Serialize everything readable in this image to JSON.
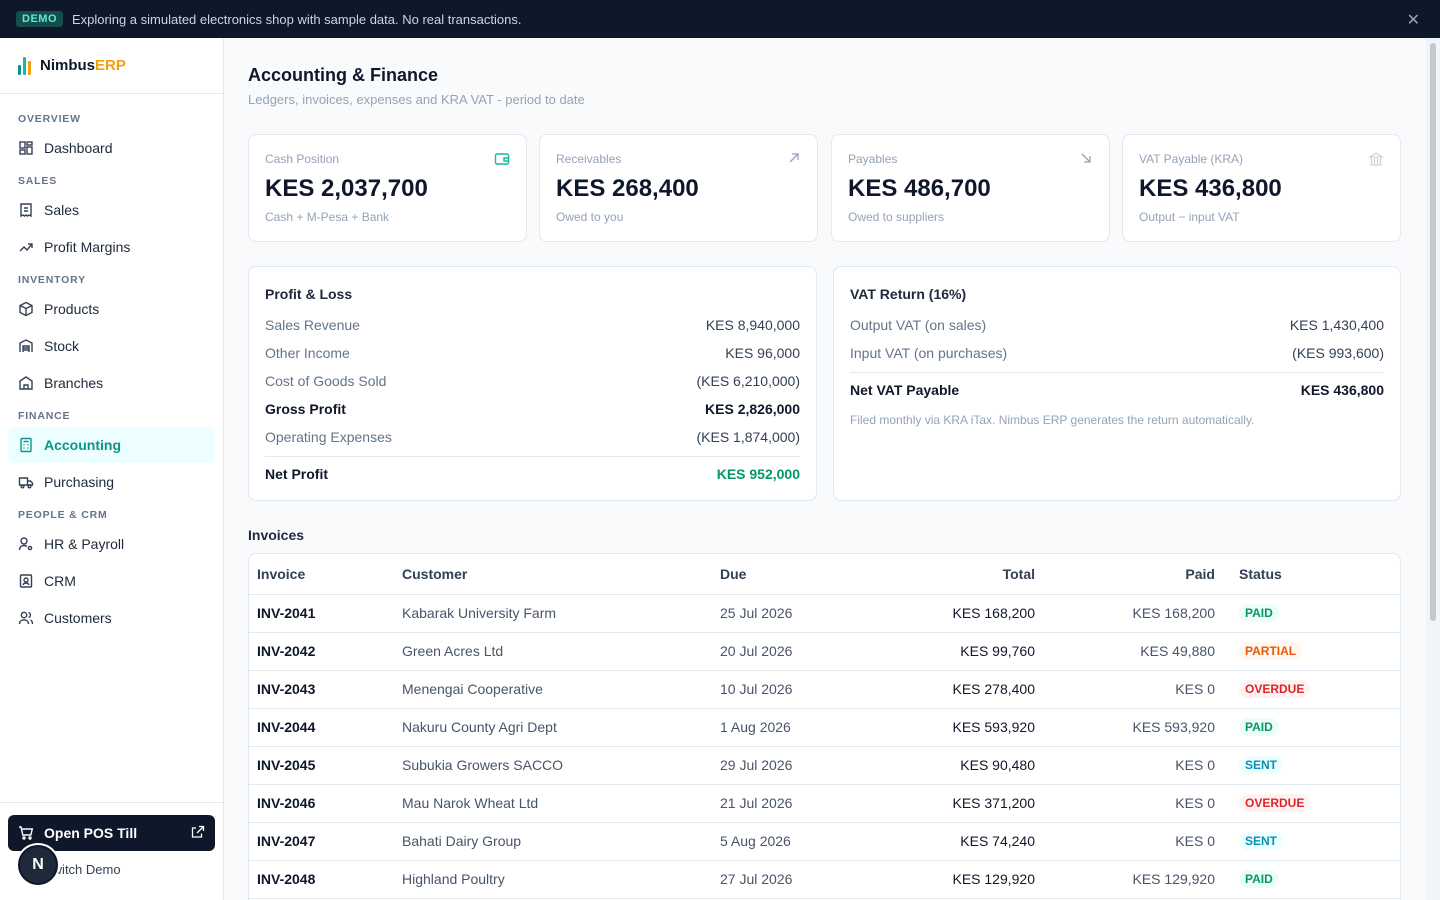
{
  "banner": {
    "badge": "DEMO",
    "text": "Exploring a simulated electronics shop with sample data. No real transactions."
  },
  "brand": {
    "name": "Nimbus",
    "accent": "ERP"
  },
  "sidebar": {
    "sections": [
      {
        "label": "OVERVIEW",
        "items": [
          {
            "label": "Dashboard",
            "icon": "dashboard-icon"
          }
        ]
      },
      {
        "label": "SALES",
        "items": [
          {
            "label": "Sales",
            "icon": "receipt-icon"
          },
          {
            "label": "Profit Margins",
            "icon": "trending-up-icon"
          }
        ]
      },
      {
        "label": "INVENTORY",
        "items": [
          {
            "label": "Products",
            "icon": "box-icon"
          },
          {
            "label": "Stock",
            "icon": "warehouse-icon"
          },
          {
            "label": "Branches",
            "icon": "building-icon"
          }
        ]
      },
      {
        "label": "FINANCE",
        "items": [
          {
            "label": "Accounting",
            "icon": "calculator-icon",
            "active": true
          },
          {
            "label": "Purchasing",
            "icon": "truck-icon"
          }
        ]
      },
      {
        "label": "PEOPLE & CRM",
        "items": [
          {
            "label": "HR & Payroll",
            "icon": "user-cog-icon"
          },
          {
            "label": "CRM",
            "icon": "contact-icon"
          },
          {
            "label": "Customers",
            "icon": "users-icon"
          }
        ]
      }
    ],
    "pos_button": "Open POS Till",
    "switch_demo": "Switch Demo",
    "avatar_initial": "N"
  },
  "page": {
    "title": "Accounting & Finance",
    "subtitle": "Ledgers, invoices, expenses and KRA VAT - period to date"
  },
  "kpis": [
    {
      "label": "Cash Position",
      "value": "KES 2,037,700",
      "note": "Cash + M-Pesa + Bank",
      "icon": "wallet-icon"
    },
    {
      "label": "Receivables",
      "value": "KES 268,400",
      "note": "Owed to you",
      "icon": "arrow-up-right-icon"
    },
    {
      "label": "Payables",
      "value": "KES 486,700",
      "note": "Owed to suppliers",
      "icon": "arrow-down-right-icon"
    },
    {
      "label": "VAT Payable (KRA)",
      "value": "KES 436,800",
      "note": "Output − input VAT",
      "icon": "landmark-icon"
    }
  ],
  "pnl": {
    "title": "Profit & Loss",
    "rows": [
      {
        "label": "Sales Revenue",
        "value": "KES 8,940,000"
      },
      {
        "label": "Other Income",
        "value": "KES 96,000"
      },
      {
        "label": "Cost of Goods Sold",
        "value": "(KES 6,210,000)"
      },
      {
        "label": "Gross Profit",
        "value": "KES 2,826,000"
      },
      {
        "label": "Operating Expenses",
        "value": "(KES 1,874,000)"
      }
    ],
    "net_label": "Net Profit",
    "net_value": "KES 952,000"
  },
  "vat": {
    "title": "VAT Return (16%)",
    "rows": [
      {
        "label": "Output VAT (on sales)",
        "value": "KES 1,430,400"
      },
      {
        "label": "Input VAT (on purchases)",
        "value": "(KES 993,600)"
      }
    ],
    "net_label": "Net VAT Payable",
    "net_value": "KES 436,800",
    "note": "Filed monthly via KRA iTax. Nimbus ERP generates the return automatically."
  },
  "invoices": {
    "title": "Invoices",
    "columns": [
      "Invoice",
      "Customer",
      "Due",
      "Total",
      "Paid",
      "Status"
    ],
    "rows": [
      [
        "INV-2041",
        "Kabarak University Farm",
        "25 Jul 2026",
        "KES 168,200",
        "KES 168,200",
        "PAID"
      ],
      [
        "INV-2042",
        "Green Acres Ltd",
        "20 Jul 2026",
        "KES 99,760",
        "KES 49,880",
        "PARTIAL"
      ],
      [
        "INV-2043",
        "Menengai Cooperative",
        "10 Jul 2026",
        "KES 278,400",
        "KES 0",
        "OVERDUE"
      ],
      [
        "INV-2044",
        "Nakuru County Agri Dept",
        "1 Aug 2026",
        "KES 593,920",
        "KES 593,920",
        "PAID"
      ],
      [
        "INV-2045",
        "Subukia Growers SACCO",
        "29 Jul 2026",
        "KES 90,480",
        "KES 0",
        "SENT"
      ],
      [
        "INV-2046",
        "Mau Narok Wheat Ltd",
        "21 Jul 2026",
        "KES 371,200",
        "KES 0",
        "OVERDUE"
      ],
      [
        "INV-2047",
        "Bahati Dairy Group",
        "5 Aug 2026",
        "KES 74,240",
        "KES 0",
        "SENT"
      ],
      [
        "INV-2048",
        "Highland Poultry",
        "27 Jul 2026",
        "KES 129,920",
        "KES 129,920",
        "PAID"
      ]
    ]
  }
}
